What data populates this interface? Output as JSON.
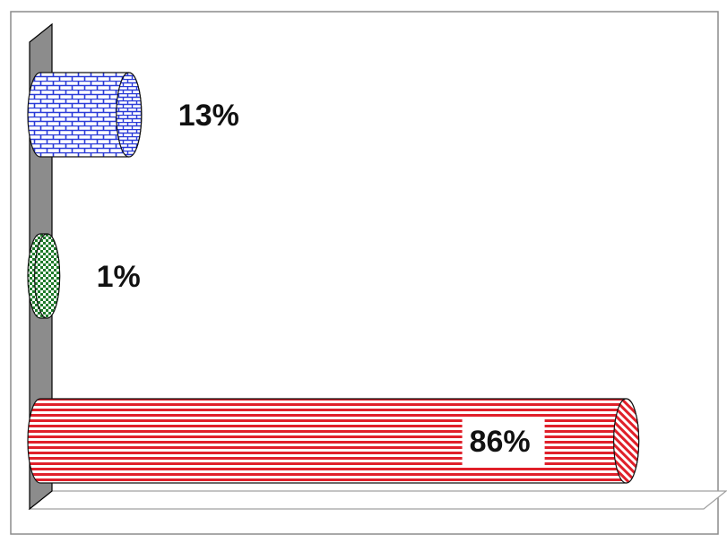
{
  "chart_data": {
    "type": "bar",
    "orientation": "horizontal",
    "style": "3d-cylinder",
    "title": "",
    "xlabel": "",
    "ylabel": "",
    "xlim": [
      0,
      100
    ],
    "grid": false,
    "legend": "none",
    "categories": [
      "",
      "",
      ""
    ],
    "values": [
      13,
      1,
      86
    ],
    "labels": [
      "13%",
      "1%",
      "86%"
    ],
    "colors": [
      "#2a3ad8",
      "#1e7a2a",
      "#e0202a"
    ],
    "patterns": [
      "brick",
      "checker",
      "horizontal-stripes"
    ]
  }
}
